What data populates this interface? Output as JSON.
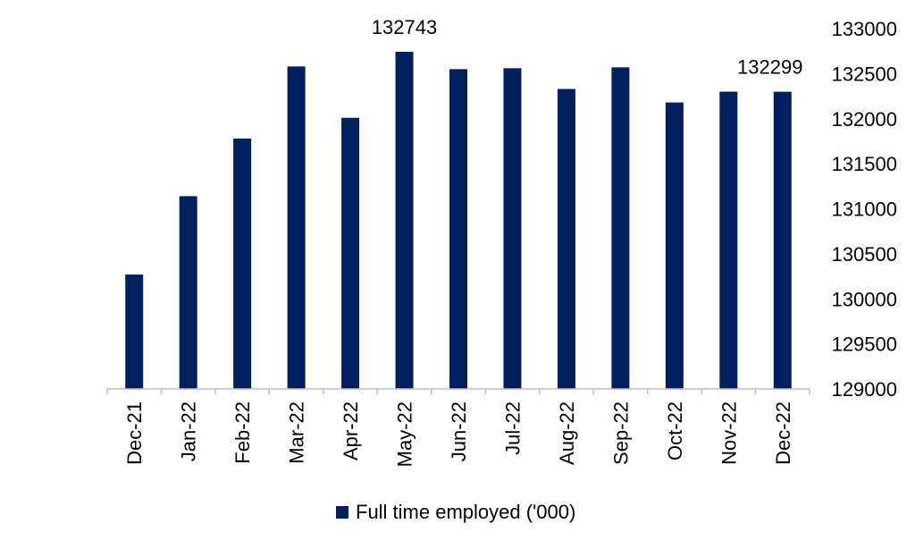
{
  "chart_data": {
    "type": "bar",
    "categories": [
      "Dec-21",
      "Jan-22",
      "Feb-22",
      "Mar-22",
      "Apr-22",
      "May-22",
      "Jun-22",
      "Jul-22",
      "Aug-22",
      "Sep-22",
      "Oct-22",
      "Nov-22",
      "Dec-22"
    ],
    "series": [
      {
        "name": "Full time employed ('000)",
        "color": "#002060",
        "values": [
          130270,
          131140,
          131780,
          132580,
          132010,
          132743,
          132550,
          132560,
          132330,
          132570,
          132180,
          132300,
          132299
        ]
      }
    ],
    "data_labels": [
      {
        "category": "May-22",
        "text": "132743"
      },
      {
        "category": "Dec-22",
        "text": "132299"
      }
    ],
    "yaxis": {
      "position": "right",
      "min": 129000,
      "max": 133000,
      "step": 500,
      "ticks": [
        "129000",
        "129500",
        "130000",
        "130500",
        "131000",
        "131500",
        "132000",
        "132500",
        "133000"
      ]
    },
    "title": "",
    "xlabel": "",
    "ylabel": "",
    "grid": false,
    "legend": {
      "position": "bottom-center",
      "label": "Full time employed ('000)"
    }
  }
}
